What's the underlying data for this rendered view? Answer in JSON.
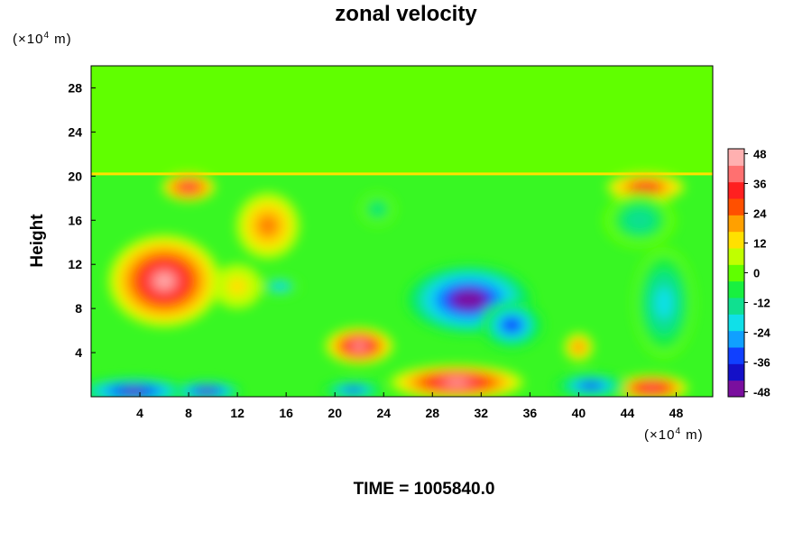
{
  "title": "zonal velocity",
  "y_unit": {
    "prefix": "(×10",
    "exp": "4",
    "suffix": " m)"
  },
  "x_unit": {
    "prefix": "(×10",
    "exp": "4",
    "suffix": " m)"
  },
  "ylabel": "Height",
  "time_label": "TIME = 1005840.0",
  "chart_data": {
    "type": "heatmap",
    "title": "zonal velocity",
    "xlabel": "",
    "ylabel": "Height",
    "x_ticks": [
      4,
      8,
      12,
      16,
      20,
      24,
      28,
      32,
      36,
      40,
      44,
      48
    ],
    "y_ticks": [
      4,
      8,
      12,
      16,
      20,
      24,
      28
    ],
    "xlim": [
      0,
      51
    ],
    "ylim": [
      0,
      30
    ],
    "colorbar": {
      "ticks": [
        48,
        36,
        24,
        12,
        0,
        -12,
        -24,
        -36,
        -48
      ],
      "range": [
        -50,
        50
      ],
      "colors": [
        "#7a0f9e",
        "#1410c8",
        "#1040ff",
        "#10a0ff",
        "#10e0e8",
        "#10e090",
        "#18f040",
        "#60ff00",
        "#c0ff00",
        "#ffe000",
        "#ffa000",
        "#ff5000",
        "#ff2020",
        "#ff7070",
        "#ffb0b0"
      ]
    },
    "background_value": 2,
    "features": [
      {
        "x": 6,
        "y": 10.5,
        "rx": 4.6,
        "ry": 4.2,
        "value": 50
      },
      {
        "x": 8,
        "y": 19,
        "rx": 2.2,
        "ry": 1.3,
        "value": 38
      },
      {
        "x": 14.5,
        "y": 15.5,
        "rx": 2.6,
        "ry": 3,
        "value": 26
      },
      {
        "x": 12,
        "y": 10,
        "rx": 2,
        "ry": 2,
        "value": 14
      },
      {
        "x": 22,
        "y": 4.6,
        "rx": 2.8,
        "ry": 1.7,
        "value": 50
      },
      {
        "x": 30,
        "y": 1.3,
        "rx": 5.5,
        "ry": 1.6,
        "value": 50
      },
      {
        "x": 46,
        "y": 0.8,
        "rx": 3,
        "ry": 1.2,
        "value": 42
      },
      {
        "x": 45.5,
        "y": 19,
        "rx": 3.2,
        "ry": 1.3,
        "value": 36
      },
      {
        "x": 40,
        "y": 4.5,
        "rx": 1.2,
        "ry": 1.3,
        "value": 26
      },
      {
        "x": 31,
        "y": 8.8,
        "rx": 5.2,
        "ry": 3.2,
        "value": -52
      },
      {
        "x": 34.5,
        "y": 6.5,
        "rx": 2.6,
        "ry": 2.2,
        "value": -36
      },
      {
        "x": 47,
        "y": 8.5,
        "rx": 2.5,
        "ry": 5,
        "value": -22
      },
      {
        "x": 45,
        "y": 16,
        "rx": 3,
        "ry": 2.5,
        "value": -16
      },
      {
        "x": 3.5,
        "y": 0.5,
        "rx": 4.5,
        "ry": 1.2,
        "value": -46
      },
      {
        "x": 9.5,
        "y": 0.5,
        "rx": 2.8,
        "ry": 0.9,
        "value": -44
      },
      {
        "x": 21.5,
        "y": 0.6,
        "rx": 2.5,
        "ry": 0.8,
        "value": -40
      },
      {
        "x": 41,
        "y": 1,
        "rx": 3,
        "ry": 1.1,
        "value": -40
      },
      {
        "x": 15.5,
        "y": 10,
        "rx": 1.6,
        "ry": 0.8,
        "value": -26
      },
      {
        "x": 23.5,
        "y": 17,
        "rx": 1.5,
        "ry": 1.5,
        "value": -14
      }
    ]
  }
}
